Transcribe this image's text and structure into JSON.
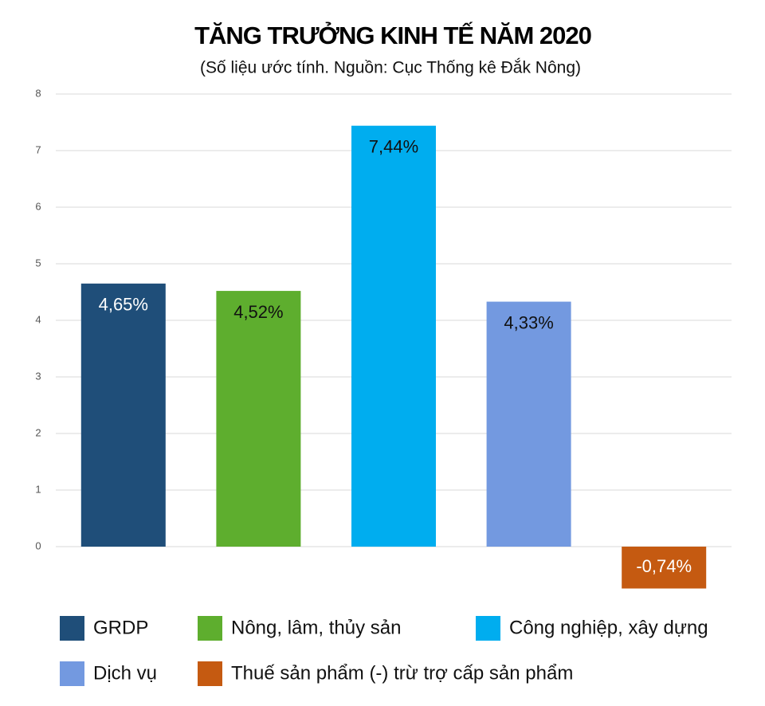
{
  "chart_data": {
    "type": "bar",
    "title": "TĂNG TRƯỞNG KINH TẾ NĂM 2020",
    "subtitle": "(Số liệu ước tính. Nguồn: Cục Thống kê Đắk Nông)",
    "series": [
      {
        "name": "GRDP",
        "color": "#1f4e79",
        "label_color": "#ffffff",
        "values": [
          4.65
        ],
        "value_labels": [
          "4,65%"
        ]
      },
      {
        "name": "Nông, lâm, thủy sản",
        "color": "#5eae2e",
        "label_color": "#111111",
        "values": [
          4.52
        ],
        "value_labels": [
          "4,52%"
        ]
      },
      {
        "name": "Công nghiệp, xây dựng",
        "color": "#00adef",
        "label_color": "#111111",
        "values": [
          7.44
        ],
        "value_labels": [
          "7,44%"
        ]
      },
      {
        "name": "Dịch vụ",
        "color": "#7399e0",
        "label_color": "#111111",
        "values": [
          4.33
        ],
        "value_labels": [
          "4,33%"
        ]
      },
      {
        "name": "Thuế sản phẩm (-) trừ trợ cấp sản phẩm",
        "color": "#c55a11",
        "label_color": "#ffffff",
        "values": [
          -0.74
        ],
        "value_labels": [
          "-0,74%"
        ]
      }
    ],
    "ylim": [
      -1,
      8
    ],
    "yticks": [
      0,
      1,
      2,
      3,
      4,
      5,
      6,
      7,
      8
    ],
    "grid": true
  }
}
